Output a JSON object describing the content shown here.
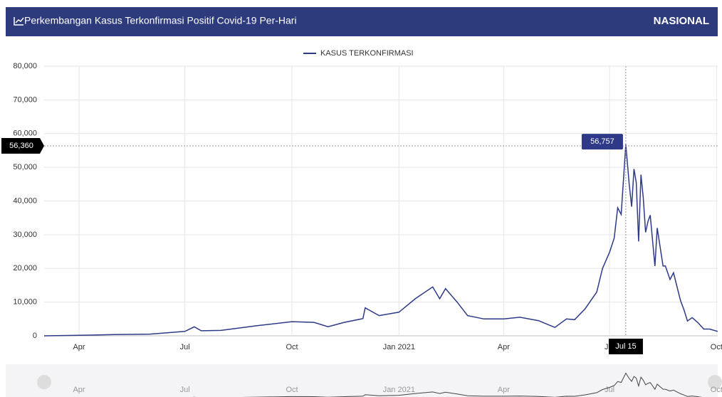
{
  "header": {
    "title": "Perkembangan Kasus Terkonfirmasi Positif Covid-19 Per-Hari",
    "region": "NASIONAL"
  },
  "chart_data": {
    "type": "line",
    "x": [
      "2020-03-02",
      "2020-04-01",
      "2020-05-01",
      "2020-06-01",
      "2020-07-01",
      "2020-07-09",
      "2020-07-15",
      "2020-08-01",
      "2020-09-01",
      "2020-10-01",
      "2020-10-20",
      "2020-11-01",
      "2020-11-15",
      "2020-12-01",
      "2020-12-03",
      "2020-12-15",
      "2021-01-01",
      "2021-01-15",
      "2021-01-30",
      "2021-02-05",
      "2021-02-10",
      "2021-02-20",
      "2021-03-01",
      "2021-03-15",
      "2021-04-01",
      "2021-04-15",
      "2021-05-01",
      "2021-05-15",
      "2021-05-25",
      "2021-06-01",
      "2021-06-10",
      "2021-06-20",
      "2021-06-25",
      "2021-07-01",
      "2021-07-05",
      "2021-07-08",
      "2021-07-11",
      "2021-07-15",
      "2021-07-18",
      "2021-07-20",
      "2021-07-22",
      "2021-07-24",
      "2021-07-26",
      "2021-07-28",
      "2021-07-30",
      "2021-08-01",
      "2021-08-03",
      "2021-08-05",
      "2021-08-09",
      "2021-08-11",
      "2021-08-16",
      "2021-08-18",
      "2021-08-22",
      "2021-08-25",
      "2021-08-31",
      "2021-09-03",
      "2021-09-06",
      "2021-09-10",
      "2021-09-15",
      "2021-09-20",
      "2021-09-25",
      "2021-10-02"
    ],
    "series": [
      {
        "name": "KASUS TERKONFIRMASI",
        "color": "#2e3a87",
        "values": [
          2,
          150,
          350,
          500,
          1300,
          2650,
          1500,
          1600,
          3000,
          4200,
          4000,
          2700,
          4000,
          5100,
          8300,
          6000,
          7000,
          11000,
          14500,
          11000,
          14000,
          10000,
          6000,
          5000,
          5000,
          5500,
          4500,
          2500,
          5000,
          4800,
          8000,
          13000,
          20000,
          24800,
          29000,
          38000,
          36000,
          56757,
          44700,
          38300,
          49500,
          45400,
          28000,
          47800,
          41000,
          30700,
          33900,
          35800,
          20700,
          32000,
          20700,
          20700,
          16700,
          18700,
          10500,
          7700,
          4400,
          5400,
          3900,
          2000,
          2000,
          1300
        ]
      }
    ],
    "xlim": [
      "2020-03-02",
      "2021-10-02"
    ],
    "xticks": [
      {
        "value": "2020-04-01",
        "label": "Apr"
      },
      {
        "value": "2020-07-01",
        "label": "Jul"
      },
      {
        "value": "2020-10-01",
        "label": "Oct"
      },
      {
        "value": "2021-01-01",
        "label": "Jan 2021"
      },
      {
        "value": "2021-04-01",
        "label": "Apr"
      },
      {
        "value": "2021-07-01",
        "label": "Jul"
      },
      {
        "value": "2021-10-01",
        "label": "Oct"
      }
    ],
    "ylim": [
      0,
      80000
    ],
    "yticks": [
      0,
      {
        "value": 10000,
        "label": "10,000"
      },
      {
        "value": 20000,
        "label": "20,000"
      },
      {
        "value": 30000,
        "label": "30,000"
      },
      {
        "value": 40000,
        "label": "40,000"
      },
      {
        "value": 50000,
        "label": "50,000"
      },
      {
        "value": 60000,
        "label": "60,000"
      },
      {
        "value": 70000,
        "label": "70,000"
      },
      {
        "value": 80000,
        "label": "80,000"
      }
    ],
    "grid": true,
    "legend": "top",
    "crosshair": {
      "value": 56360,
      "label": "56,360"
    },
    "tooltip": {
      "x": "2021-07-15",
      "x_label": "Jul 15",
      "value_label": "56,757"
    }
  }
}
